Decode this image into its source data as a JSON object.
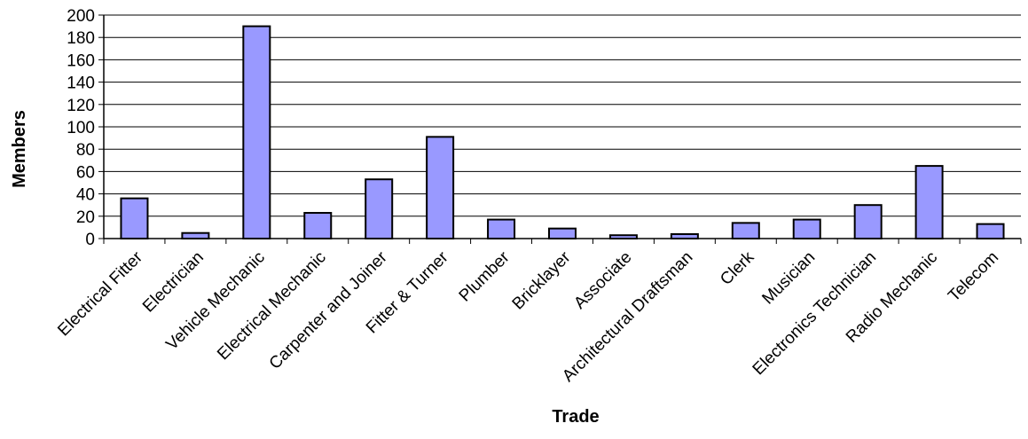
{
  "chart_data": {
    "type": "bar",
    "title": "",
    "xlabel": "Trade",
    "ylabel": "Members",
    "ylim": [
      0,
      200
    ],
    "yticks": [
      0,
      20,
      40,
      60,
      80,
      100,
      120,
      140,
      160,
      180,
      200
    ],
    "grid": true,
    "categories": [
      "Electrical Fitter",
      "Electrician",
      "Vehicle Mechanic",
      "Electrical Mechanic",
      "Carpenter and Joiner",
      "Fitter & Turner",
      "Plumber",
      "Bricklayer",
      "Associate",
      "Architectural Draftsman",
      "Clerk",
      "Musician",
      "Electronics Technician",
      "Radio Mechanic",
      "Telecom"
    ],
    "values": [
      36,
      5,
      190,
      23,
      53,
      91,
      17,
      9,
      3,
      4,
      14,
      17,
      30,
      65,
      13
    ],
    "bar_color": "#9999ff",
    "bar_stroke": "#000000"
  }
}
